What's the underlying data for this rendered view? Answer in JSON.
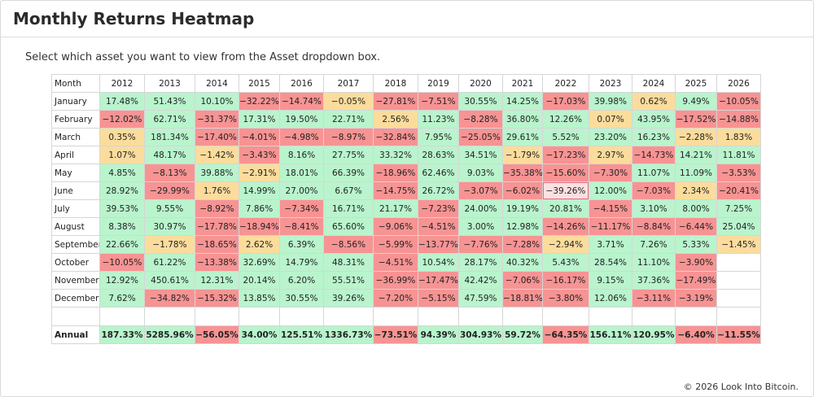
{
  "title": "Monthly Returns Heatmap",
  "subtitle": "Select which asset you want to view from the Asset dropdown box.",
  "footer": "© 2026 Look Into Bitcoin.",
  "colors": {
    "positive": "#b9f4cd",
    "negative": "#f79393",
    "near_zero": "#fbdc9c",
    "selected": "#fde0e0"
  },
  "table": {
    "month_header": "Month",
    "years": [
      "2012",
      "2013",
      "2014",
      "2015",
      "2016",
      "2017",
      "2018",
      "2019",
      "2020",
      "2021",
      "2022",
      "2023",
      "2024",
      "2025",
      "2026"
    ],
    "rows": [
      {
        "month": "January",
        "values": [
          "17.48%",
          "51.43%",
          "10.10%",
          "−32.22%",
          "−14.74%",
          "−0.05%",
          "−27.81%",
          "−7.51%",
          "30.55%",
          "14.25%",
          "−17.03%",
          "39.98%",
          "0.62%",
          "9.49%",
          "−10.05%"
        ]
      },
      {
        "month": "February",
        "values": [
          "−12.02%",
          "62.71%",
          "−31.37%",
          "17.31%",
          "19.50%",
          "22.71%",
          "2.56%",
          "11.23%",
          "−8.28%",
          "36.80%",
          "12.26%",
          "0.07%",
          "43.95%",
          "−17.52%",
          "−14.88%"
        ]
      },
      {
        "month": "March",
        "values": [
          "0.35%",
          "181.34%",
          "−17.40%",
          "−4.01%",
          "−4.98%",
          "−8.97%",
          "−32.84%",
          "7.95%",
          "−25.05%",
          "29.61%",
          "5.52%",
          "23.20%",
          "16.23%",
          "−2.28%",
          "1.83%"
        ]
      },
      {
        "month": "April",
        "values": [
          "1.07%",
          "48.17%",
          "−1.42%",
          "−3.43%",
          "8.16%",
          "27.75%",
          "33.32%",
          "28.63%",
          "34.51%",
          "−1.79%",
          "−17.23%",
          "2.97%",
          "−14.73%",
          "14.21%",
          "11.81%"
        ]
      },
      {
        "month": "May",
        "values": [
          "4.85%",
          "−8.13%",
          "39.88%",
          "−2.91%",
          "18.01%",
          "66.39%",
          "−18.96%",
          "62.46%",
          "9.03%",
          "−35.38%",
          "−15.60%",
          "−7.30%",
          "11.07%",
          "11.09%",
          "−3.53%"
        ]
      },
      {
        "month": "June",
        "values": [
          "28.92%",
          "−29.99%",
          "1.76%",
          "14.99%",
          "27.00%",
          "6.67%",
          "−14.75%",
          "26.72%",
          "−3.07%",
          "−6.02%",
          "−39.26%",
          "12.00%",
          "−7.03%",
          "2.34%",
          "−20.41%"
        ]
      },
      {
        "month": "July",
        "values": [
          "39.53%",
          "9.55%",
          "−8.92%",
          "7.86%",
          "−7.34%",
          "16.71%",
          "21.17%",
          "−7.23%",
          "24.00%",
          "19.19%",
          "20.81%",
          "−4.15%",
          "3.10%",
          "8.00%",
          "7.25%"
        ]
      },
      {
        "month": "August",
        "values": [
          "8.38%",
          "30.97%",
          "−17.78%",
          "−18.94%",
          "−8.41%",
          "65.60%",
          "−9.06%",
          "−4.51%",
          "3.00%",
          "12.98%",
          "−14.26%",
          "−11.17%",
          "−8.84%",
          "−6.44%",
          "25.04%"
        ]
      },
      {
        "month": "September",
        "values": [
          "22.66%",
          "−1.78%",
          "−18.65%",
          "2.62%",
          "6.39%",
          "−8.56%",
          "−5.99%",
          "−13.77%",
          "−7.76%",
          "−7.28%",
          "−2.94%",
          "3.71%",
          "7.26%",
          "5.33%",
          "−1.45%"
        ]
      },
      {
        "month": "October",
        "values": [
          "−10.05%",
          "61.22%",
          "−13.38%",
          "32.69%",
          "14.79%",
          "48.31%",
          "−4.51%",
          "10.54%",
          "28.17%",
          "40.32%",
          "5.43%",
          "28.54%",
          "11.10%",
          "−3.90%",
          ""
        ]
      },
      {
        "month": "November",
        "values": [
          "12.92%",
          "450.61%",
          "12.31%",
          "20.14%",
          "6.20%",
          "55.51%",
          "−36.99%",
          "−17.47%",
          "42.42%",
          "−7.06%",
          "−16.17%",
          "9.15%",
          "37.36%",
          "−17.49%",
          ""
        ]
      },
      {
        "month": "December",
        "values": [
          "7.62%",
          "−34.82%",
          "−15.32%",
          "13.85%",
          "30.55%",
          "39.26%",
          "−7.20%",
          "−5.15%",
          "47.59%",
          "−18.81%",
          "−3.80%",
          "12.06%",
          "−3.11%",
          "−3.19%",
          ""
        ]
      }
    ],
    "annual": {
      "label": "Annual",
      "values": [
        "187.33%",
        "5285.96%",
        "−56.05%",
        "34.00%",
        "125.51%",
        "1336.73%",
        "−73.51%",
        "94.39%",
        "304.93%",
        "59.72%",
        "−64.35%",
        "156.11%",
        "120.95%",
        "−6.40%",
        "−11.55%"
      ]
    },
    "selected_cell": {
      "month": "June",
      "year": "2022"
    }
  }
}
